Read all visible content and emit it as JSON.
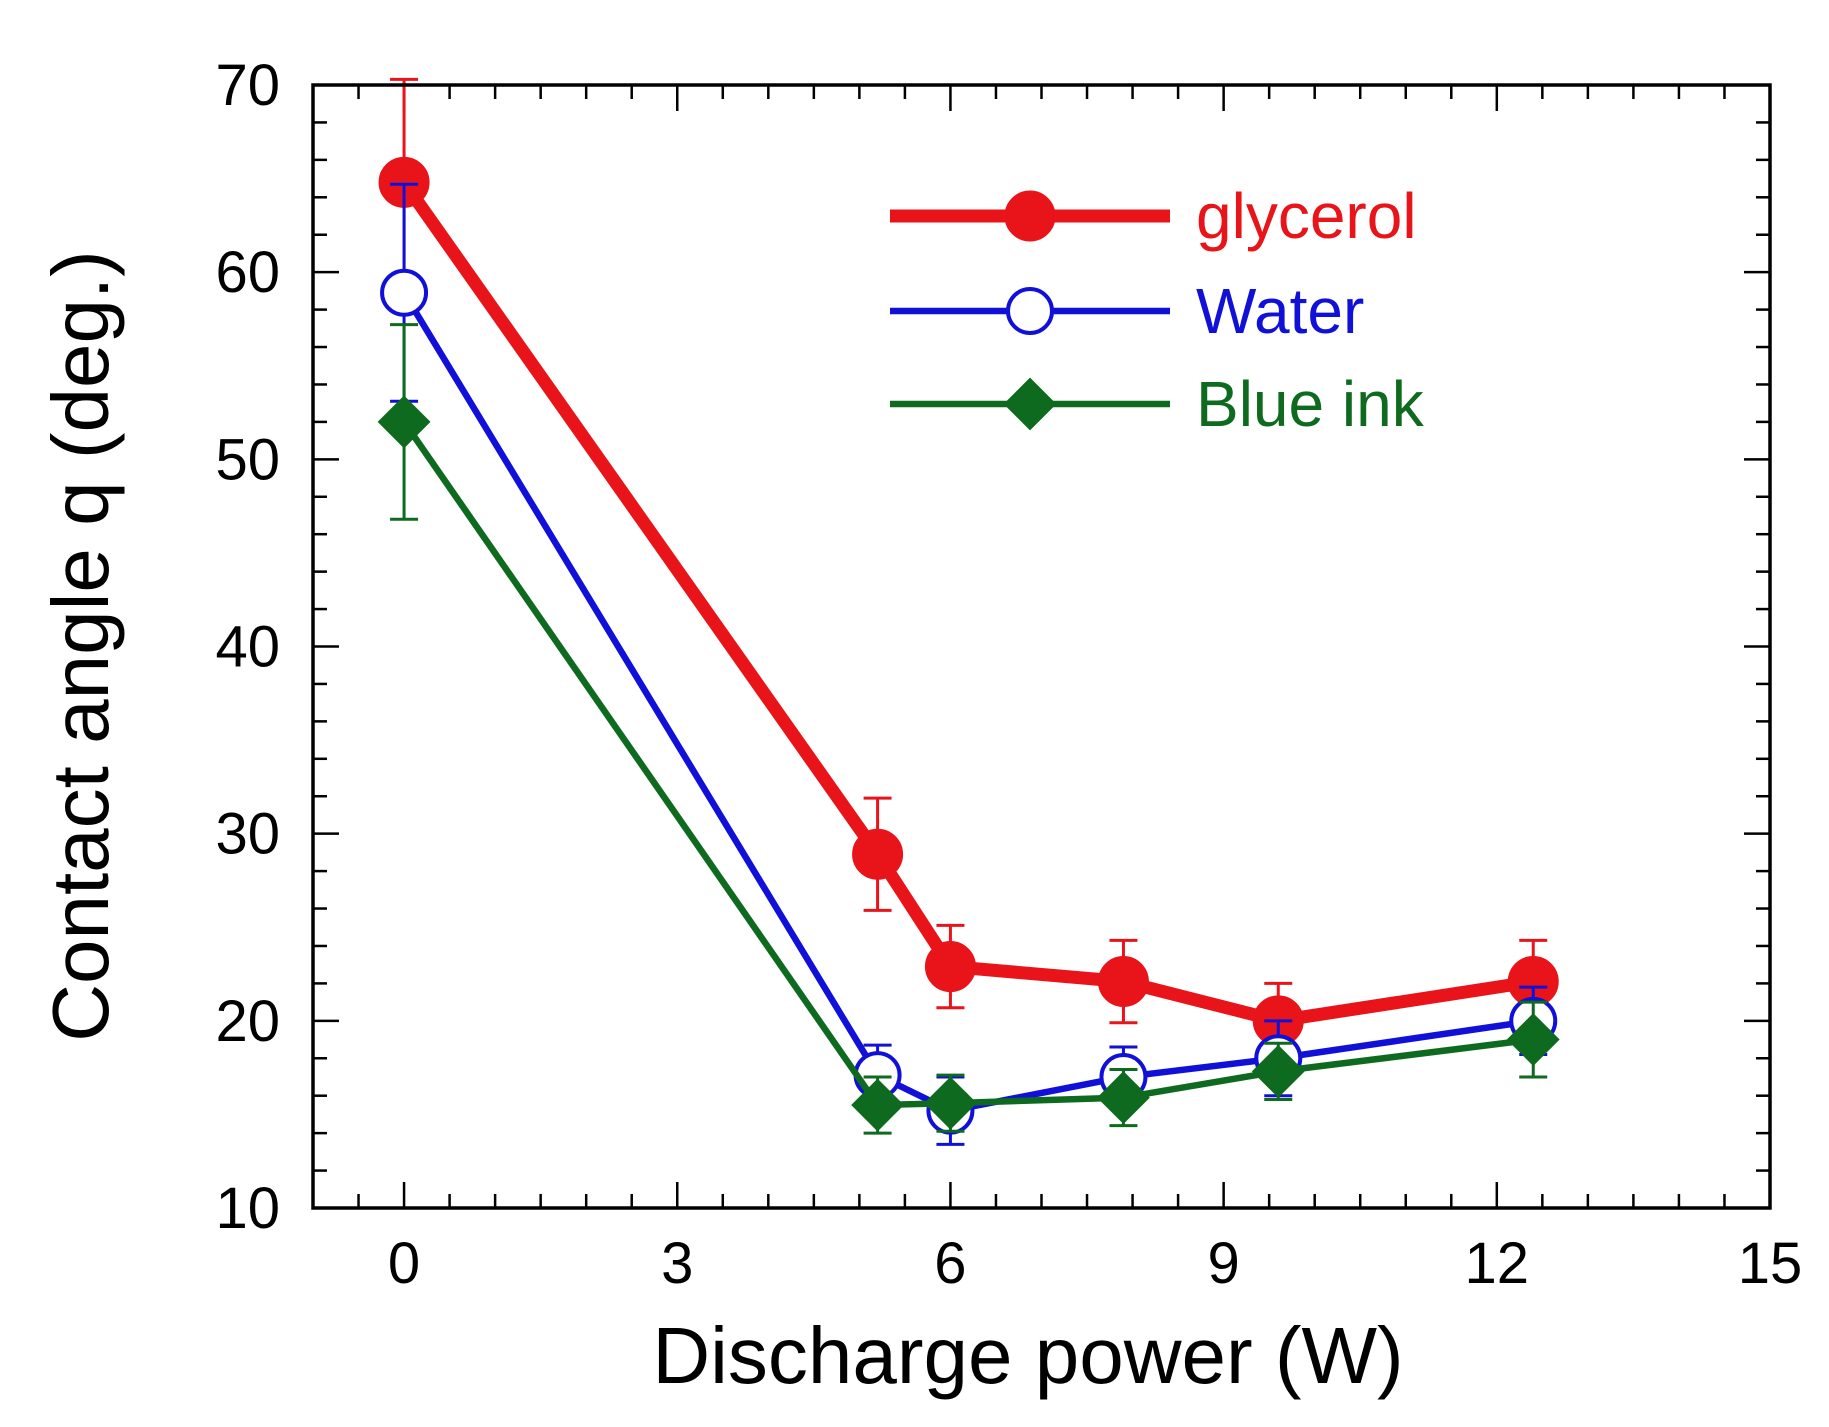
{
  "chart_data": {
    "type": "line",
    "title": "",
    "xlabel": "Discharge power (W)",
    "ylabel": "Contact angle q (deg.)",
    "xlim": [
      -1,
      15
    ],
    "ylim": [
      10,
      70
    ],
    "x_major_ticks": [
      0,
      3,
      6,
      9,
      12,
      15
    ],
    "y_major_ticks": [
      10,
      20,
      30,
      40,
      50,
      60,
      70
    ],
    "x_minor_step": 0.5,
    "y_minor_step": 2,
    "grid": false,
    "legend_position": "top-right",
    "series": [
      {
        "name": "glycerol",
        "color": "#e8141a",
        "marker": "filled-circle",
        "line_weight": "thick",
        "x": [
          0,
          5.2,
          6.0,
          7.9,
          9.6,
          12.4
        ],
        "y": [
          64.8,
          28.9,
          22.9,
          22.1,
          20.0,
          22.1
        ],
        "err": [
          5.5,
          3.0,
          2.2,
          2.2,
          2.0,
          2.2
        ]
      },
      {
        "name": "Water",
        "color": "#1010d8",
        "marker": "open-circle",
        "line_weight": "medium",
        "x": [
          0,
          5.2,
          6.0,
          7.9,
          9.6,
          12.4
        ],
        "y": [
          58.9,
          17.1,
          15.2,
          17.0,
          18.0,
          20.0
        ],
        "err": [
          5.8,
          1.6,
          1.8,
          1.6,
          2.0,
          1.8
        ]
      },
      {
        "name": "Blue ink",
        "color": "#0e6a1e",
        "marker": "filled-diamond",
        "line_weight": "medium",
        "x": [
          0,
          5.2,
          6.0,
          7.9,
          9.6,
          12.4
        ],
        "y": [
          52.0,
          15.5,
          15.6,
          15.9,
          17.3,
          19.0
        ],
        "err": [
          5.2,
          1.5,
          1.5,
          1.5,
          1.5,
          2.0
        ]
      }
    ]
  }
}
